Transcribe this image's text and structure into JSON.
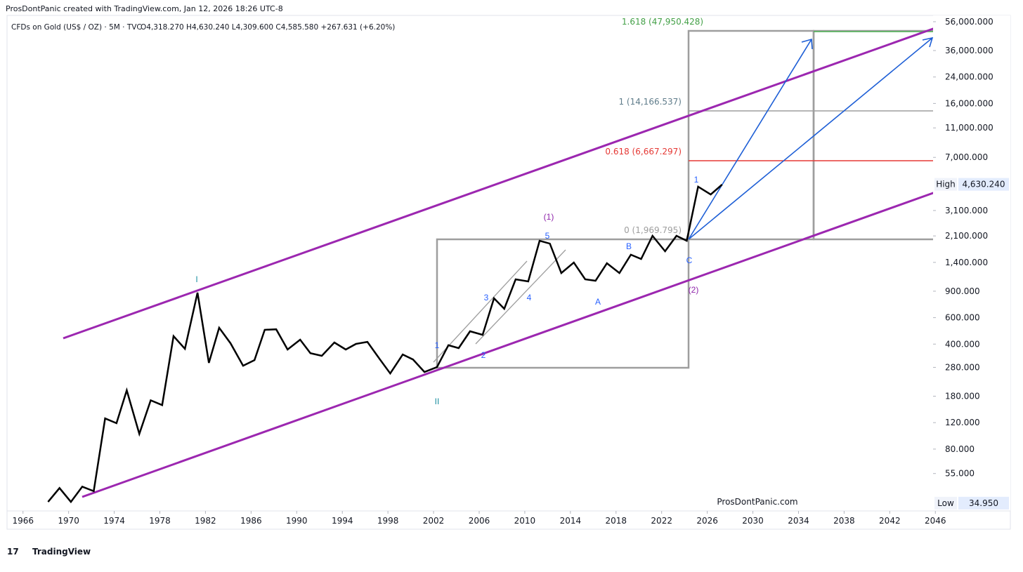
{
  "header": "ProsDontPanic created with TradingView.com, Jan 12, 2026 18:26 UTC-8",
  "symbol_line": "CFDs on Gold (US$ / OZ) · 5M · TVC",
  "ohlc": {
    "open": "O4,318.270",
    "high": "H4,630.240",
    "low": "L4,309.600",
    "close": "C4,585.580",
    "change": "+267.631 (+6.20%)"
  },
  "watermark": "ProsDontPanic.com",
  "footer": "TradingView",
  "chart_data": {
    "type": "line",
    "log_scale": true,
    "grid": false,
    "color": "#000000",
    "xlim": [
      1964.6,
      2046.6
    ],
    "xticks": [
      1966,
      1970,
      1974,
      1978,
      1982,
      1986,
      1990,
      1994,
      1998,
      2002,
      2006,
      2010,
      2014,
      2018,
      2022,
      2026,
      2030,
      2034,
      2038,
      2042,
      2046
    ],
    "ylim": [
      31,
      63000
    ],
    "yticks": [
      {
        "value": 56000,
        "label": "56,000.000"
      },
      {
        "value": 36000,
        "label": "36,000.000"
      },
      {
        "value": 24000,
        "label": "24,000.000"
      },
      {
        "value": 16000,
        "label": "16,000.000"
      },
      {
        "value": 11000,
        "label": "11,000.000"
      },
      {
        "value": 7000,
        "label": "7,000.000"
      },
      {
        "value": 3100,
        "label": "3,100.000"
      },
      {
        "value": 2100,
        "label": "2,100.000"
      },
      {
        "value": 1400,
        "label": "1,400.000"
      },
      {
        "value": 900,
        "label": "900.000"
      },
      {
        "value": 600,
        "label": "600.000"
      },
      {
        "value": 400,
        "label": "400.000"
      },
      {
        "value": 280,
        "label": "280.000"
      },
      {
        "value": 180,
        "label": "180.000"
      },
      {
        "value": 120,
        "label": "120.000"
      },
      {
        "value": 80,
        "label": "80.000"
      },
      {
        "value": 55,
        "label": "55.000"
      }
    ],
    "high_marker": {
      "name": "High",
      "value": 4630.24,
      "label": "4,630.240"
    },
    "low_marker": {
      "name": "Low",
      "value": 34.95,
      "label": "34.950"
    },
    "x": [
      1968.2,
      1969.2,
      1970.2,
      1971.2,
      1972.2,
      1973.2,
      1974.2,
      1975.1,
      1976.2,
      1977.2,
      1978.2,
      1979.2,
      1980.2,
      1981.3,
      1982.3,
      1983.2,
      1984.2,
      1985.3,
      1986.3,
      1987.2,
      1988.2,
      1989.2,
      1990.3,
      1991.2,
      1992.2,
      1993.3,
      1994.3,
      1995.2,
      1996.2,
      1997.3,
      1998.2,
      1999.3,
      2000.2,
      2001.2,
      2002.3,
      2003.3,
      2004.2,
      2005.2,
      2006.3,
      2007.3,
      2008.2,
      2009.2,
      2010.3,
      2011.3,
      2012.2,
      2013.2,
      2014.3,
      2015.3,
      2016.2,
      2017.2,
      2018.3,
      2019.3,
      2020.2,
      2021.2,
      2022.3,
      2023.3,
      2024.2,
      2025.2,
      2026.3,
      2027.3
    ],
    "values": [
      35.6,
      44,
      35.6,
      45,
      42,
      128,
      119,
      197,
      101,
      169,
      157,
      452,
      372,
      880,
      300,
      514,
      405,
      287,
      313,
      498,
      502,
      368,
      428,
      348,
      334,
      410,
      368,
      401,
      414,
      316,
      255,
      341,
      316,
      261,
      281,
      393,
      376,
      487,
      461,
      807,
      687,
      1079,
      1045,
      1950,
      1866,
      1189,
      1396,
      1079,
      1057,
      1381,
      1189,
      1574,
      1475,
      2104,
      1660,
      2104,
      1950,
      4467,
      3963,
      4613
    ],
    "fib_labels": [
      "1.618 (47,950.428)",
      "1 (14,166.537)",
      "0.618 (6,667.297)",
      "0 (1,969.795)"
    ],
    "annotations": [
      "I",
      "II",
      "(1)",
      "(2)",
      "1",
      "2",
      "3",
      "4",
      "5",
      "A",
      "B",
      "C",
      "1"
    ]
  }
}
